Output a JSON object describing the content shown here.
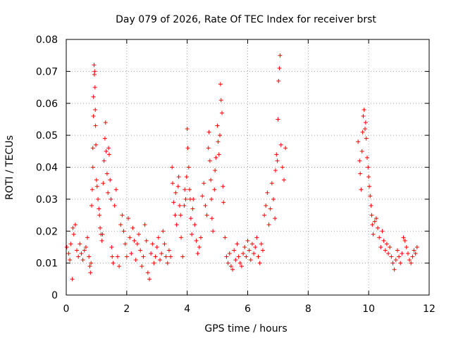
{
  "chart_data": {
    "type": "scatter",
    "title": "Day 079 of 2026, Rate Of TEC Index for receiver brst",
    "xlabel": "GPS time / hours",
    "ylabel": "ROTI / TECUs",
    "xlim": [
      0,
      12
    ],
    "ylim": [
      0,
      0.08
    ],
    "xticks": [
      0,
      2,
      4,
      6,
      8,
      10,
      12
    ],
    "xtick_labels": [
      "0",
      "2",
      "4",
      "6",
      "8",
      "10",
      "12"
    ],
    "yticks": [
      0,
      0.01,
      0.02,
      0.03,
      0.04,
      0.05,
      0.06,
      0.07,
      0.08
    ],
    "ytick_labels": [
      "0",
      "0.01",
      "0.02",
      "0.03",
      "0.04",
      "0.05",
      "0.06",
      "0.07",
      "0.08"
    ],
    "grid": true,
    "marker": "+",
    "series": [
      {
        "name": "brst",
        "color": "#ff0000",
        "points": [
          [
            0.02,
            0.015
          ],
          [
            0.08,
            0.013
          ],
          [
            0.12,
            0.011
          ],
          [
            0.15,
            0.016
          ],
          [
            0.2,
            0.005
          ],
          [
            0.22,
            0.021
          ],
          [
            0.25,
            0.019
          ],
          [
            0.3,
            0.022
          ],
          [
            0.35,
            0.014
          ],
          [
            0.4,
            0.012
          ],
          [
            0.45,
            0.016
          ],
          [
            0.5,
            0.013
          ],
          [
            0.55,
            0.011
          ],
          [
            0.6,
            0.014
          ],
          [
            0.65,
            0.015
          ],
          [
            0.7,
            0.018
          ],
          [
            0.75,
            0.012
          ],
          [
            0.78,
            0.009
          ],
          [
            0.8,
            0.007
          ],
          [
            0.82,
            0.01
          ],
          [
            0.84,
            0.028
          ],
          [
            0.86,
            0.033
          ],
          [
            0.88,
            0.04
          ],
          [
            0.88,
            0.046
          ],
          [
            0.9,
            0.056
          ],
          [
            0.9,
            0.062
          ],
          [
            0.92,
            0.072
          ],
          [
            0.93,
            0.069
          ],
          [
            0.94,
            0.07
          ],
          [
            0.95,
            0.065
          ],
          [
            0.96,
            0.058
          ],
          [
            0.97,
            0.053
          ],
          [
            0.98,
            0.047
          ],
          [
            1.0,
            0.036
          ],
          [
            1.02,
            0.034
          ],
          [
            1.05,
            0.03
          ],
          [
            1.08,
            0.027
          ],
          [
            1.1,
            0.025
          ],
          [
            1.12,
            0.021
          ],
          [
            1.15,
            0.019
          ],
          [
            1.18,
            0.017
          ],
          [
            1.2,
            0.019
          ],
          [
            1.22,
            0.035
          ],
          [
            1.25,
            0.042
          ],
          [
            1.28,
            0.049
          ],
          [
            1.3,
            0.054
          ],
          [
            1.32,
            0.045
          ],
          [
            1.35,
            0.038
          ],
          [
            1.38,
            0.032
          ],
          [
            1.4,
            0.046
          ],
          [
            1.42,
            0.044
          ],
          [
            1.45,
            0.036
          ],
          [
            1.48,
            0.03
          ],
          [
            1.5,
            0.015
          ],
          [
            1.52,
            0.012
          ],
          [
            1.55,
            0.01
          ],
          [
            1.6,
            0.028
          ],
          [
            1.65,
            0.033
          ],
          [
            1.7,
            0.012
          ],
          [
            1.75,
            0.009
          ],
          [
            1.8,
            0.022
          ],
          [
            1.85,
            0.025
          ],
          [
            1.9,
            0.02
          ],
          [
            1.95,
            0.016
          ],
          [
            2.0,
            0.012
          ],
          [
            2.05,
            0.024
          ],
          [
            2.1,
            0.018
          ],
          [
            2.15,
            0.013
          ],
          [
            2.2,
            0.021
          ],
          [
            2.25,
            0.017
          ],
          [
            2.3,
            0.011
          ],
          [
            2.35,
            0.016
          ],
          [
            2.4,
            0.019
          ],
          [
            2.45,
            0.014
          ],
          [
            2.5,
            0.009
          ],
          [
            2.55,
            0.012
          ],
          [
            2.6,
            0.022
          ],
          [
            2.65,
            0.017
          ],
          [
            2.7,
            0.007
          ],
          [
            2.75,
            0.005
          ],
          [
            2.8,
            0.013
          ],
          [
            2.85,
            0.016
          ],
          [
            2.9,
            0.01
          ],
          [
            2.95,
            0.012
          ],
          [
            3.0,
            0.015
          ],
          [
            3.05,
            0.018
          ],
          [
            3.1,
            0.011
          ],
          [
            3.15,
            0.013
          ],
          [
            3.2,
            0.02
          ],
          [
            3.25,
            0.016
          ],
          [
            3.3,
            0.012
          ],
          [
            3.35,
            0.01
          ],
          [
            3.4,
            0.014
          ],
          [
            3.45,
            0.012
          ],
          [
            3.5,
            0.04
          ],
          [
            3.52,
            0.035
          ],
          [
            3.55,
            0.029
          ],
          [
            3.6,
            0.025
          ],
          [
            3.62,
            0.032
          ],
          [
            3.65,
            0.022
          ],
          [
            3.7,
            0.034
          ],
          [
            3.72,
            0.037
          ],
          [
            3.75,
            0.028
          ],
          [
            3.78,
            0.025
          ],
          [
            3.8,
            0.018
          ],
          [
            3.85,
            0.012
          ],
          [
            3.9,
            0.028
          ],
          [
            3.92,
            0.033
          ],
          [
            3.95,
            0.03
          ],
          [
            3.98,
            0.037
          ],
          [
            4.0,
            0.052
          ],
          [
            4.02,
            0.046
          ],
          [
            4.05,
            0.04
          ],
          [
            4.08,
            0.033
          ],
          [
            4.1,
            0.03
          ],
          [
            4.12,
            0.024
          ],
          [
            4.15,
            0.019
          ],
          [
            4.18,
            0.027
          ],
          [
            4.2,
            0.03
          ],
          [
            4.25,
            0.022
          ],
          [
            4.3,
            0.017
          ],
          [
            4.35,
            0.013
          ],
          [
            4.4,
            0.015
          ],
          [
            4.45,
            0.018
          ],
          [
            4.5,
            0.031
          ],
          [
            4.55,
            0.035
          ],
          [
            4.6,
            0.028
          ],
          [
            4.65,
            0.025
          ],
          [
            4.7,
            0.046
          ],
          [
            4.72,
            0.051
          ],
          [
            4.75,
            0.042
          ],
          [
            4.78,
            0.036
          ],
          [
            4.8,
            0.03
          ],
          [
            4.82,
            0.024
          ],
          [
            4.85,
            0.02
          ],
          [
            4.9,
            0.033
          ],
          [
            4.92,
            0.039
          ],
          [
            4.95,
            0.043
          ],
          [
            5.0,
            0.053
          ],
          [
            5.02,
            0.048
          ],
          [
            5.05,
            0.044
          ],
          [
            5.08,
            0.05
          ],
          [
            5.1,
            0.066
          ],
          [
            5.12,
            0.061
          ],
          [
            5.15,
            0.057
          ],
          [
            5.18,
            0.034
          ],
          [
            5.2,
            0.029
          ],
          [
            5.25,
            0.018
          ],
          [
            5.3,
            0.012
          ],
          [
            5.35,
            0.01
          ],
          [
            5.4,
            0.013
          ],
          [
            5.45,
            0.009
          ],
          [
            5.5,
            0.008
          ],
          [
            5.55,
            0.014
          ],
          [
            5.6,
            0.011
          ],
          [
            5.65,
            0.016
          ],
          [
            5.7,
            0.012
          ],
          [
            5.75,
            0.01
          ],
          [
            5.8,
            0.009
          ],
          [
            5.85,
            0.013
          ],
          [
            5.9,
            0.015
          ],
          [
            5.95,
            0.012
          ],
          [
            6.0,
            0.017
          ],
          [
            6.05,
            0.014
          ],
          [
            6.1,
            0.011
          ],
          [
            6.15,
            0.016
          ],
          [
            6.2,
            0.013
          ],
          [
            6.25,
            0.015
          ],
          [
            6.3,
            0.018
          ],
          [
            6.35,
            0.012
          ],
          [
            6.4,
            0.01
          ],
          [
            6.45,
            0.016
          ],
          [
            6.5,
            0.014
          ],
          [
            6.55,
            0.025
          ],
          [
            6.6,
            0.028
          ],
          [
            6.65,
            0.032
          ],
          [
            6.7,
            0.022
          ],
          [
            6.75,
            0.027
          ],
          [
            6.8,
            0.035
          ],
          [
            6.85,
            0.03
          ],
          [
            6.9,
            0.024
          ],
          [
            6.92,
            0.039
          ],
          [
            6.95,
            0.044
          ],
          [
            6.98,
            0.042
          ],
          [
            7.0,
            0.055
          ],
          [
            7.02,
            0.067
          ],
          [
            7.05,
            0.071
          ],
          [
            7.07,
            0.075
          ],
          [
            7.1,
            0.047
          ],
          [
            7.15,
            0.04
          ],
          [
            7.2,
            0.036
          ],
          [
            7.25,
            0.046
          ],
          [
            9.65,
            0.048
          ],
          [
            9.7,
            0.042
          ],
          [
            9.72,
            0.038
          ],
          [
            9.75,
            0.033
          ],
          [
            9.78,
            0.045
          ],
          [
            9.8,
            0.051
          ],
          [
            9.82,
            0.056
          ],
          [
            9.85,
            0.058
          ],
          [
            9.88,
            0.052
          ],
          [
            9.9,
            0.054
          ],
          [
            9.92,
            0.049
          ],
          [
            9.95,
            0.043
          ],
          [
            9.98,
            0.04
          ],
          [
            10.0,
            0.037
          ],
          [
            10.02,
            0.034
          ],
          [
            10.05,
            0.031
          ],
          [
            10.08,
            0.028
          ],
          [
            10.1,
            0.025
          ],
          [
            10.12,
            0.022
          ],
          [
            10.15,
            0.019
          ],
          [
            10.2,
            0.023
          ],
          [
            10.25,
            0.024
          ],
          [
            10.3,
            0.021
          ],
          [
            10.35,
            0.018
          ],
          [
            10.4,
            0.015
          ],
          [
            10.45,
            0.02
          ],
          [
            10.5,
            0.017
          ],
          [
            10.55,
            0.014
          ],
          [
            10.6,
            0.016
          ],
          [
            10.65,
            0.013
          ],
          [
            10.7,
            0.015
          ],
          [
            10.75,
            0.012
          ],
          [
            10.8,
            0.01
          ],
          [
            10.85,
            0.008
          ],
          [
            10.9,
            0.011
          ],
          [
            10.95,
            0.014
          ],
          [
            11.0,
            0.012
          ],
          [
            11.05,
            0.01
          ],
          [
            11.1,
            0.013
          ],
          [
            11.15,
            0.018
          ],
          [
            11.2,
            0.017
          ],
          [
            11.25,
            0.015
          ],
          [
            11.3,
            0.013
          ],
          [
            11.35,
            0.011
          ],
          [
            11.4,
            0.01
          ],
          [
            11.45,
            0.012
          ],
          [
            11.5,
            0.014
          ],
          [
            11.55,
            0.013
          ],
          [
            11.6,
            0.015
          ]
        ]
      }
    ]
  }
}
